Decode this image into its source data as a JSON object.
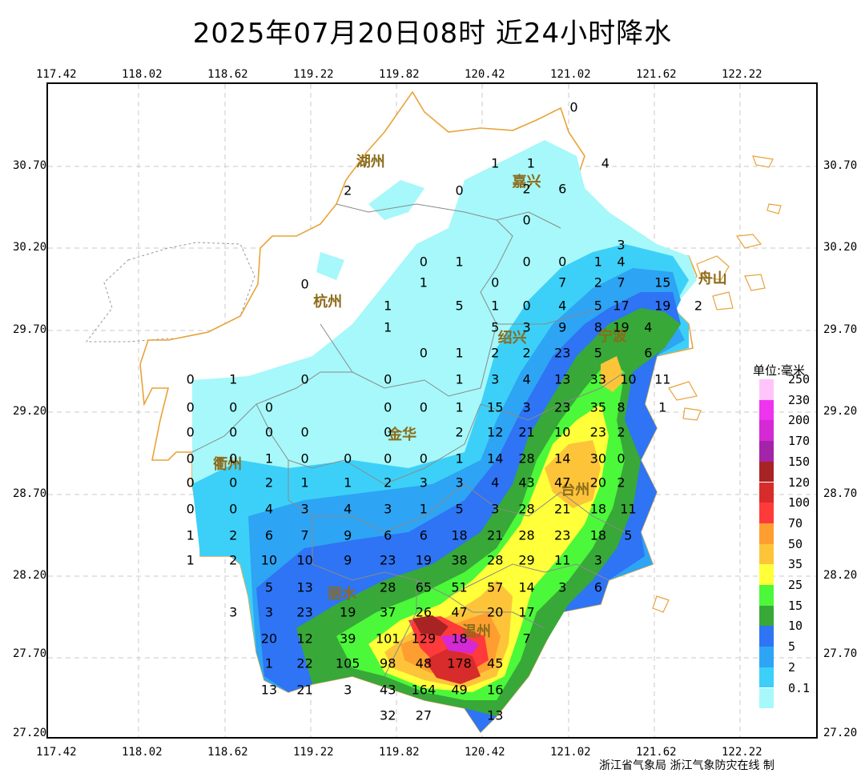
{
  "title": "2025年07月20日08时  近24小时降水",
  "x_ticks": [
    "117.42",
    "118.02",
    "118.62",
    "119.22",
    "119.82",
    "120.42",
    "121.02",
    "121.62",
    "122.22"
  ],
  "y_ticks": [
    "30.70",
    "30.20",
    "29.70",
    "29.20",
    "28.70",
    "28.20",
    "27.70",
    "27.20"
  ],
  "cities": [
    {
      "name": "湖州",
      "lon": 119.68,
      "lat": 30.71
    },
    {
      "name": "嘉兴",
      "lon": 120.77,
      "lat": 30.59
    },
    {
      "name": "杭州",
      "lon": 119.38,
      "lat": 29.86
    },
    {
      "name": "绍兴",
      "lon": 120.67,
      "lat": 29.64
    },
    {
      "name": "宁波",
      "lon": 121.37,
      "lat": 29.65
    },
    {
      "name": "舟山",
      "lon": 122.07,
      "lat": 30.0
    },
    {
      "name": "金华",
      "lon": 119.9,
      "lat": 29.05
    },
    {
      "name": "衢州",
      "lon": 118.68,
      "lat": 28.87
    },
    {
      "name": "台州",
      "lon": 121.11,
      "lat": 28.71
    },
    {
      "name": "丽水",
      "lon": 119.48,
      "lat": 28.08
    },
    {
      "name": "温州",
      "lon": 120.42,
      "lat": 27.85
    }
  ],
  "rain_values": [
    {
      "v": "0",
      "lon": 121.1,
      "lat": 31.04
    },
    {
      "v": "1",
      "lon": 120.55,
      "lat": 30.7
    },
    {
      "v": "1",
      "lon": 120.8,
      "lat": 30.7
    },
    {
      "v": "4",
      "lon": 121.32,
      "lat": 30.7
    },
    {
      "v": "2",
      "lon": 119.52,
      "lat": 30.53
    },
    {
      "v": "0",
      "lon": 120.3,
      "lat": 30.53
    },
    {
      "v": "2",
      "lon": 120.77,
      "lat": 30.54
    },
    {
      "v": "6",
      "lon": 121.02,
      "lat": 30.54
    },
    {
      "v": "0",
      "lon": 120.77,
      "lat": 30.35
    },
    {
      "v": "3",
      "lon": 121.43,
      "lat": 30.2
    },
    {
      "v": "0",
      "lon": 120.05,
      "lat": 30.1
    },
    {
      "v": "1",
      "lon": 120.3,
      "lat": 30.1
    },
    {
      "v": "0",
      "lon": 120.77,
      "lat": 30.1
    },
    {
      "v": "0",
      "lon": 121.02,
      "lat": 30.1
    },
    {
      "v": "1",
      "lon": 121.27,
      "lat": 30.1
    },
    {
      "v": "4",
      "lon": 121.43,
      "lat": 30.1
    },
    {
      "v": "0",
      "lon": 119.22,
      "lat": 29.96
    },
    {
      "v": "1",
      "lon": 120.05,
      "lat": 29.97
    },
    {
      "v": "0",
      "lon": 120.55,
      "lat": 29.97
    },
    {
      "v": "7",
      "lon": 121.02,
      "lat": 29.97
    },
    {
      "v": "2",
      "lon": 121.27,
      "lat": 29.97
    },
    {
      "v": "7",
      "lon": 121.43,
      "lat": 29.97
    },
    {
      "v": "15",
      "lon": 121.72,
      "lat": 29.97
    },
    {
      "v": "1",
      "lon": 119.8,
      "lat": 29.83
    },
    {
      "v": "5",
      "lon": 120.3,
      "lat": 29.83
    },
    {
      "v": "1",
      "lon": 120.55,
      "lat": 29.83
    },
    {
      "v": "0",
      "lon": 120.77,
      "lat": 29.83
    },
    {
      "v": "4",
      "lon": 121.02,
      "lat": 29.83
    },
    {
      "v": "5",
      "lon": 121.27,
      "lat": 29.83
    },
    {
      "v": "17",
      "lon": 121.43,
      "lat": 29.83
    },
    {
      "v": "19",
      "lon": 121.72,
      "lat": 29.83
    },
    {
      "v": "2",
      "lon": 121.97,
      "lat": 29.83
    },
    {
      "v": "1",
      "lon": 119.8,
      "lat": 29.7
    },
    {
      "v": "5",
      "lon": 120.55,
      "lat": 29.7
    },
    {
      "v": "3",
      "lon": 120.77,
      "lat": 29.7
    },
    {
      "v": "9",
      "lon": 121.02,
      "lat": 29.7
    },
    {
      "v": "8",
      "lon": 121.27,
      "lat": 29.7
    },
    {
      "v": "19",
      "lon": 121.43,
      "lat": 29.7
    },
    {
      "v": "4",
      "lon": 121.62,
      "lat": 29.7
    },
    {
      "v": "0",
      "lon": 120.05,
      "lat": 29.54
    },
    {
      "v": "1",
      "lon": 120.3,
      "lat": 29.54
    },
    {
      "v": "2",
      "lon": 120.55,
      "lat": 29.54
    },
    {
      "v": "2",
      "lon": 120.77,
      "lat": 29.54
    },
    {
      "v": "23",
      "lon": 121.02,
      "lat": 29.54
    },
    {
      "v": "5",
      "lon": 121.27,
      "lat": 29.54
    },
    {
      "v": "6",
      "lon": 121.62,
      "lat": 29.54
    },
    {
      "v": "0",
      "lon": 118.42,
      "lat": 29.38
    },
    {
      "v": "1",
      "lon": 118.72,
      "lat": 29.38
    },
    {
      "v": "0",
      "lon": 119.22,
      "lat": 29.38
    },
    {
      "v": "0",
      "lon": 119.8,
      "lat": 29.38
    },
    {
      "v": "1",
      "lon": 120.3,
      "lat": 29.38
    },
    {
      "v": "3",
      "lon": 120.55,
      "lat": 29.38
    },
    {
      "v": "4",
      "lon": 120.77,
      "lat": 29.38
    },
    {
      "v": "13",
      "lon": 121.02,
      "lat": 29.38
    },
    {
      "v": "33",
      "lon": 121.27,
      "lat": 29.38
    },
    {
      "v": "10",
      "lon": 121.48,
      "lat": 29.38
    },
    {
      "v": "11",
      "lon": 121.72,
      "lat": 29.38
    },
    {
      "v": "0",
      "lon": 118.42,
      "lat": 29.21
    },
    {
      "v": "0",
      "lon": 118.72,
      "lat": 29.21
    },
    {
      "v": "0",
      "lon": 118.97,
      "lat": 29.21
    },
    {
      "v": "0",
      "lon": 119.8,
      "lat": 29.21
    },
    {
      "v": "0",
      "lon": 120.05,
      "lat": 29.21
    },
    {
      "v": "1",
      "lon": 120.3,
      "lat": 29.21
    },
    {
      "v": "15",
      "lon": 120.55,
      "lat": 29.21
    },
    {
      "v": "3",
      "lon": 120.77,
      "lat": 29.21
    },
    {
      "v": "23",
      "lon": 121.02,
      "lat": 29.21
    },
    {
      "v": "35",
      "lon": 121.27,
      "lat": 29.21
    },
    {
      "v": "8",
      "lon": 121.43,
      "lat": 29.21
    },
    {
      "v": "1",
      "lon": 121.72,
      "lat": 29.21
    },
    {
      "v": "0",
      "lon": 118.42,
      "lat": 29.06
    },
    {
      "v": "0",
      "lon": 118.72,
      "lat": 29.06
    },
    {
      "v": "0",
      "lon": 118.97,
      "lat": 29.06
    },
    {
      "v": "0",
      "lon": 119.22,
      "lat": 29.06
    },
    {
      "v": "0",
      "lon": 119.8,
      "lat": 29.06
    },
    {
      "v": "2",
      "lon": 120.3,
      "lat": 29.06
    },
    {
      "v": "12",
      "lon": 120.55,
      "lat": 29.06
    },
    {
      "v": "21",
      "lon": 120.77,
      "lat": 29.06
    },
    {
      "v": "10",
      "lon": 121.02,
      "lat": 29.06
    },
    {
      "v": "23",
      "lon": 121.27,
      "lat": 29.06
    },
    {
      "v": "2",
      "lon": 121.43,
      "lat": 29.06
    },
    {
      "v": "0",
      "lon": 118.42,
      "lat": 28.9
    },
    {
      "v": "0",
      "lon": 118.72,
      "lat": 28.9
    },
    {
      "v": "1",
      "lon": 118.97,
      "lat": 28.9
    },
    {
      "v": "0",
      "lon": 119.22,
      "lat": 28.9
    },
    {
      "v": "0",
      "lon": 119.52,
      "lat": 28.9
    },
    {
      "v": "0",
      "lon": 119.8,
      "lat": 28.9
    },
    {
      "v": "0",
      "lon": 120.05,
      "lat": 28.9
    },
    {
      "v": "1",
      "lon": 120.3,
      "lat": 28.9
    },
    {
      "v": "14",
      "lon": 120.55,
      "lat": 28.9
    },
    {
      "v": "28",
      "lon": 120.77,
      "lat": 28.9
    },
    {
      "v": "14",
      "lon": 121.02,
      "lat": 28.9
    },
    {
      "v": "30",
      "lon": 121.27,
      "lat": 28.9
    },
    {
      "v": "0",
      "lon": 121.43,
      "lat": 28.9
    },
    {
      "v": "0",
      "lon": 118.42,
      "lat": 28.75
    },
    {
      "v": "0",
      "lon": 118.72,
      "lat": 28.75
    },
    {
      "v": "2",
      "lon": 118.97,
      "lat": 28.75
    },
    {
      "v": "1",
      "lon": 119.22,
      "lat": 28.75
    },
    {
      "v": "1",
      "lon": 119.52,
      "lat": 28.75
    },
    {
      "v": "2",
      "lon": 119.8,
      "lat": 28.75
    },
    {
      "v": "3",
      "lon": 120.05,
      "lat": 28.75
    },
    {
      "v": "3",
      "lon": 120.3,
      "lat": 28.75
    },
    {
      "v": "4",
      "lon": 120.55,
      "lat": 28.75
    },
    {
      "v": "43",
      "lon": 120.77,
      "lat": 28.75
    },
    {
      "v": "47",
      "lon": 121.02,
      "lat": 28.75
    },
    {
      "v": "20",
      "lon": 121.27,
      "lat": 28.75
    },
    {
      "v": "2",
      "lon": 121.43,
      "lat": 28.75
    },
    {
      "v": "0",
      "lon": 118.42,
      "lat": 28.59
    },
    {
      "v": "0",
      "lon": 118.72,
      "lat": 28.59
    },
    {
      "v": "4",
      "lon": 118.97,
      "lat": 28.59
    },
    {
      "v": "3",
      "lon": 119.22,
      "lat": 28.59
    },
    {
      "v": "4",
      "lon": 119.52,
      "lat": 28.59
    },
    {
      "v": "3",
      "lon": 119.8,
      "lat": 28.59
    },
    {
      "v": "1",
      "lon": 120.05,
      "lat": 28.59
    },
    {
      "v": "5",
      "lon": 120.3,
      "lat": 28.59
    },
    {
      "v": "3",
      "lon": 120.55,
      "lat": 28.59
    },
    {
      "v": "28",
      "lon": 120.77,
      "lat": 28.59
    },
    {
      "v": "21",
      "lon": 121.02,
      "lat": 28.59
    },
    {
      "v": "18",
      "lon": 121.27,
      "lat": 28.59
    },
    {
      "v": "11",
      "lon": 121.48,
      "lat": 28.59
    },
    {
      "v": "1",
      "lon": 118.42,
      "lat": 28.43
    },
    {
      "v": "2",
      "lon": 118.72,
      "lat": 28.43
    },
    {
      "v": "6",
      "lon": 118.97,
      "lat": 28.43
    },
    {
      "v": "7",
      "lon": 119.22,
      "lat": 28.43
    },
    {
      "v": "9",
      "lon": 119.52,
      "lat": 28.43
    },
    {
      "v": "6",
      "lon": 119.8,
      "lat": 28.43
    },
    {
      "v": "6",
      "lon": 120.05,
      "lat": 28.43
    },
    {
      "v": "18",
      "lon": 120.3,
      "lat": 28.43
    },
    {
      "v": "21",
      "lon": 120.55,
      "lat": 28.43
    },
    {
      "v": "28",
      "lon": 120.77,
      "lat": 28.43
    },
    {
      "v": "23",
      "lon": 121.02,
      "lat": 28.43
    },
    {
      "v": "18",
      "lon": 121.27,
      "lat": 28.43
    },
    {
      "v": "5",
      "lon": 121.48,
      "lat": 28.43
    },
    {
      "v": "1",
      "lon": 118.42,
      "lat": 28.28
    },
    {
      "v": "2",
      "lon": 118.72,
      "lat": 28.28
    },
    {
      "v": "10",
      "lon": 118.97,
      "lat": 28.28
    },
    {
      "v": "10",
      "lon": 119.22,
      "lat": 28.28
    },
    {
      "v": "9",
      "lon": 119.52,
      "lat": 28.28
    },
    {
      "v": "23",
      "lon": 119.8,
      "lat": 28.28
    },
    {
      "v": "19",
      "lon": 120.05,
      "lat": 28.28
    },
    {
      "v": "38",
      "lon": 120.3,
      "lat": 28.28
    },
    {
      "v": "28",
      "lon": 120.55,
      "lat": 28.28
    },
    {
      "v": "29",
      "lon": 120.77,
      "lat": 28.28
    },
    {
      "v": "11",
      "lon": 121.02,
      "lat": 28.28
    },
    {
      "v": "3",
      "lon": 121.27,
      "lat": 28.28
    },
    {
      "v": "5",
      "lon": 118.97,
      "lat": 28.11
    },
    {
      "v": "13",
      "lon": 119.22,
      "lat": 28.11
    },
    {
      "v": "28",
      "lon": 119.8,
      "lat": 28.11
    },
    {
      "v": "65",
      "lon": 120.05,
      "lat": 28.11
    },
    {
      "v": "51",
      "lon": 120.3,
      "lat": 28.11
    },
    {
      "v": "57",
      "lon": 120.55,
      "lat": 28.11
    },
    {
      "v": "14",
      "lon": 120.77,
      "lat": 28.11
    },
    {
      "v": "3",
      "lon": 121.02,
      "lat": 28.11
    },
    {
      "v": "6",
      "lon": 121.27,
      "lat": 28.11
    },
    {
      "v": "3",
      "lon": 118.72,
      "lat": 27.96
    },
    {
      "v": "3",
      "lon": 118.97,
      "lat": 27.96
    },
    {
      "v": "23",
      "lon": 119.22,
      "lat": 27.96
    },
    {
      "v": "19",
      "lon": 119.52,
      "lat": 27.96
    },
    {
      "v": "37",
      "lon": 119.8,
      "lat": 27.96
    },
    {
      "v": "26",
      "lon": 120.05,
      "lat": 27.96
    },
    {
      "v": "47",
      "lon": 120.3,
      "lat": 27.96
    },
    {
      "v": "20",
      "lon": 120.55,
      "lat": 27.96
    },
    {
      "v": "17",
      "lon": 120.77,
      "lat": 27.96
    },
    {
      "v": "20",
      "lon": 118.97,
      "lat": 27.8
    },
    {
      "v": "12",
      "lon": 119.22,
      "lat": 27.8
    },
    {
      "v": "39",
      "lon": 119.52,
      "lat": 27.8
    },
    {
      "v": "101",
      "lon": 119.8,
      "lat": 27.8
    },
    {
      "v": "129",
      "lon": 120.05,
      "lat": 27.8
    },
    {
      "v": "18",
      "lon": 120.3,
      "lat": 27.8
    },
    {
      "v": "7",
      "lon": 120.77,
      "lat": 27.8
    },
    {
      "v": "1",
      "lon": 118.97,
      "lat": 27.65
    },
    {
      "v": "22",
      "lon": 119.22,
      "lat": 27.65
    },
    {
      "v": "105",
      "lon": 119.52,
      "lat": 27.65
    },
    {
      "v": "98",
      "lon": 119.8,
      "lat": 27.65
    },
    {
      "v": "48",
      "lon": 120.05,
      "lat": 27.65
    },
    {
      "v": "178",
      "lon": 120.3,
      "lat": 27.65
    },
    {
      "v": "45",
      "lon": 120.55,
      "lat": 27.65
    },
    {
      "v": "13",
      "lon": 118.97,
      "lat": 27.49
    },
    {
      "v": "21",
      "lon": 119.22,
      "lat": 27.49
    },
    {
      "v": "3",
      "lon": 119.52,
      "lat": 27.49
    },
    {
      "v": "43",
      "lon": 119.8,
      "lat": 27.49
    },
    {
      "v": "164",
      "lon": 120.05,
      "lat": 27.49
    },
    {
      "v": "49",
      "lon": 120.3,
      "lat": 27.49
    },
    {
      "v": "16",
      "lon": 120.55,
      "lat": 27.49
    },
    {
      "v": "32",
      "lon": 119.8,
      "lat": 27.33
    },
    {
      "v": "27",
      "lon": 120.05,
      "lat": 27.33
    },
    {
      "v": "13",
      "lon": 120.55,
      "lat": 27.33
    }
  ],
  "legend": {
    "title": "单位:毫米",
    "levels": [
      {
        "label": "250",
        "color": "#ffc4fa"
      },
      {
        "label": "230",
        "color": "#ee34ee"
      },
      {
        "label": "200",
        "color": "#d429d4"
      },
      {
        "label": "170",
        "color": "#a324a8"
      },
      {
        "label": "150",
        "color": "#a82424"
      },
      {
        "label": "120",
        "color": "#d82b2b"
      },
      {
        "label": "100",
        "color": "#ff3a3a"
      },
      {
        "label": "70",
        "color": "#ff9e30"
      },
      {
        "label": "50",
        "color": "#fdc43a"
      },
      {
        "label": "35",
        "color": "#ffff3a"
      },
      {
        "label": "25",
        "color": "#4cf83a"
      },
      {
        "label": "15",
        "color": "#38a838"
      },
      {
        "label": "10",
        "color": "#2e74f4"
      },
      {
        "label": "5",
        "color": "#2ea4f4"
      },
      {
        "label": "2",
        "color": "#3cd0f8"
      },
      {
        "label": "0.1",
        "color": "#a6f8fa"
      }
    ]
  },
  "credit": "浙江省气象局  浙江气象防灾在线 制"
}
